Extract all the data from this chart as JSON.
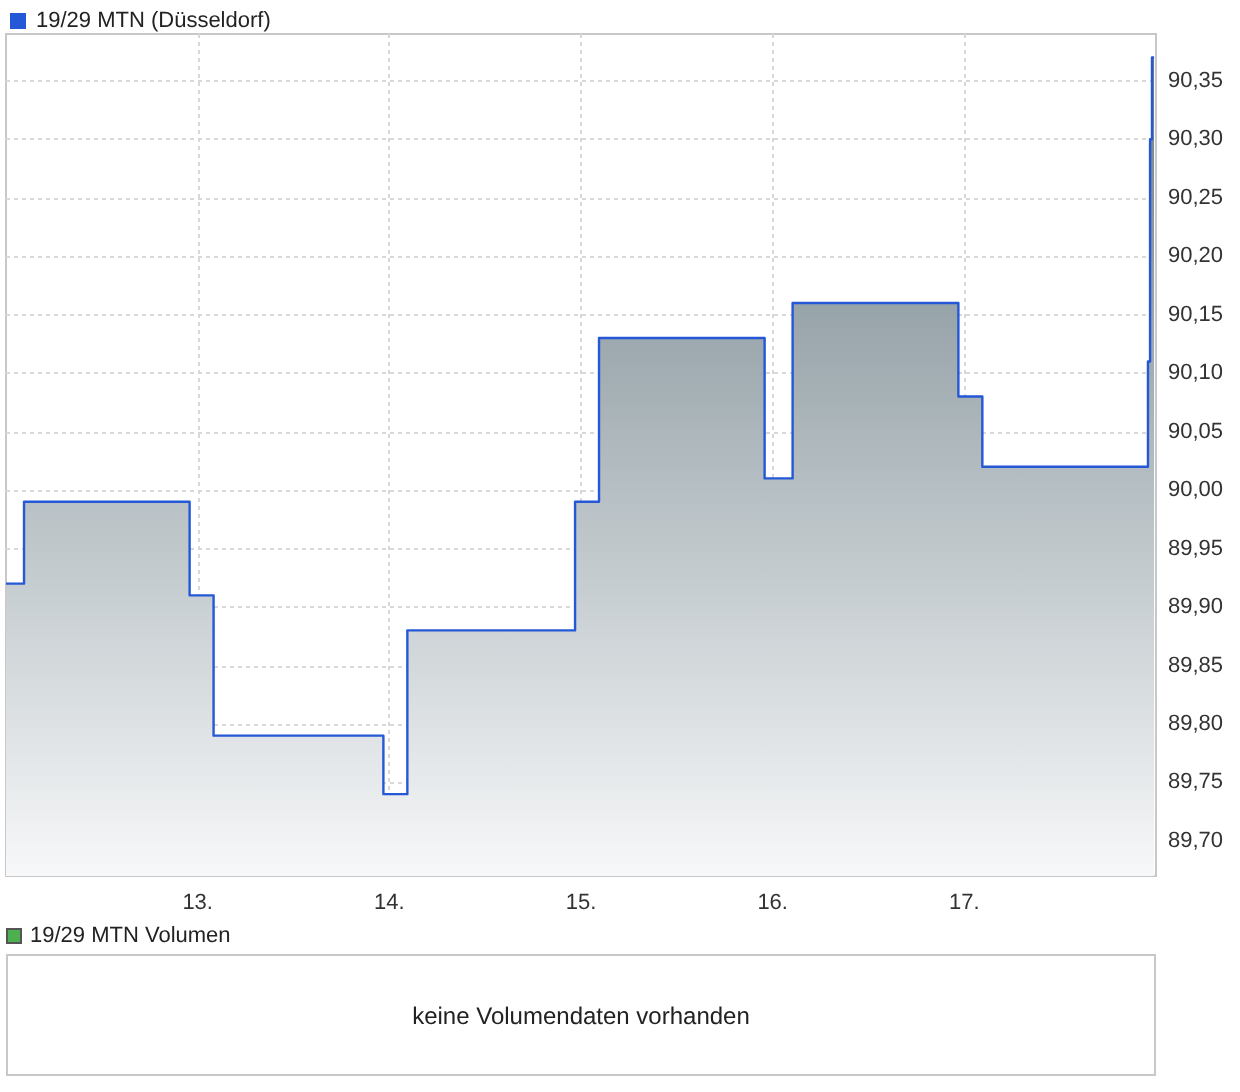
{
  "chart_data": [
    {
      "type": "area",
      "x": [
        12.0,
        12.094,
        12.094,
        12.958,
        12.958,
        13.083,
        13.083,
        13.969,
        13.969,
        14.094,
        14.094,
        14.969,
        14.969,
        15.094,
        15.094,
        15.958,
        15.958,
        16.104,
        16.104,
        16.969,
        16.969,
        17.094,
        17.094,
        17.958,
        17.958,
        17.969,
        17.969,
        17.979,
        17.979,
        17.99
      ],
      "series": [
        {
          "name": "19/29 MTN (Düsseldorf)",
          "color": "#2458d6",
          "values": [
            89.92,
            89.92,
            89.99,
            89.99,
            89.91,
            89.91,
            89.79,
            89.79,
            89.74,
            89.74,
            89.88,
            89.88,
            89.99,
            89.99,
            90.13,
            90.13,
            90.01,
            90.01,
            90.16,
            90.16,
            90.08,
            90.08,
            90.02,
            90.02,
            90.11,
            90.11,
            90.3,
            90.3,
            90.37,
            90.37
          ]
        }
      ],
      "xlim": [
        12,
        18
      ],
      "xticks": [
        {
          "value": 13,
          "label": "13."
        },
        {
          "value": 14,
          "label": "14."
        },
        {
          "value": 15,
          "label": "15."
        },
        {
          "value": 16,
          "label": "16."
        },
        {
          "value": 17,
          "label": "17."
        }
      ],
      "ylim": [
        89.67,
        90.39
      ],
      "yticks": [
        {
          "value": 89.7,
          "label": "89,70"
        },
        {
          "value": 89.75,
          "label": "89,75"
        },
        {
          "value": 89.8,
          "label": "89,80"
        },
        {
          "value": 89.85,
          "label": "89,85"
        },
        {
          "value": 89.9,
          "label": "89,90"
        },
        {
          "value": 89.95,
          "label": "89,95"
        },
        {
          "value": 90.0,
          "label": "90,00"
        },
        {
          "value": 90.05,
          "label": "90,05"
        },
        {
          "value": 90.1,
          "label": "90,10"
        },
        {
          "value": 90.15,
          "label": "90,15"
        },
        {
          "value": 90.2,
          "label": "90,20"
        },
        {
          "value": 90.25,
          "label": "90,25"
        },
        {
          "value": 90.3,
          "label": "90,30"
        },
        {
          "value": 90.35,
          "label": "90,35"
        }
      ],
      "grid": true,
      "legend": "top left",
      "marker": "none"
    },
    {
      "type": "other",
      "series": [
        {
          "name": "19/29 MTN Volumen",
          "color": "#4caf50"
        }
      ],
      "annotations": [
        "keine Volumendaten vorhanden"
      ]
    }
  ]
}
